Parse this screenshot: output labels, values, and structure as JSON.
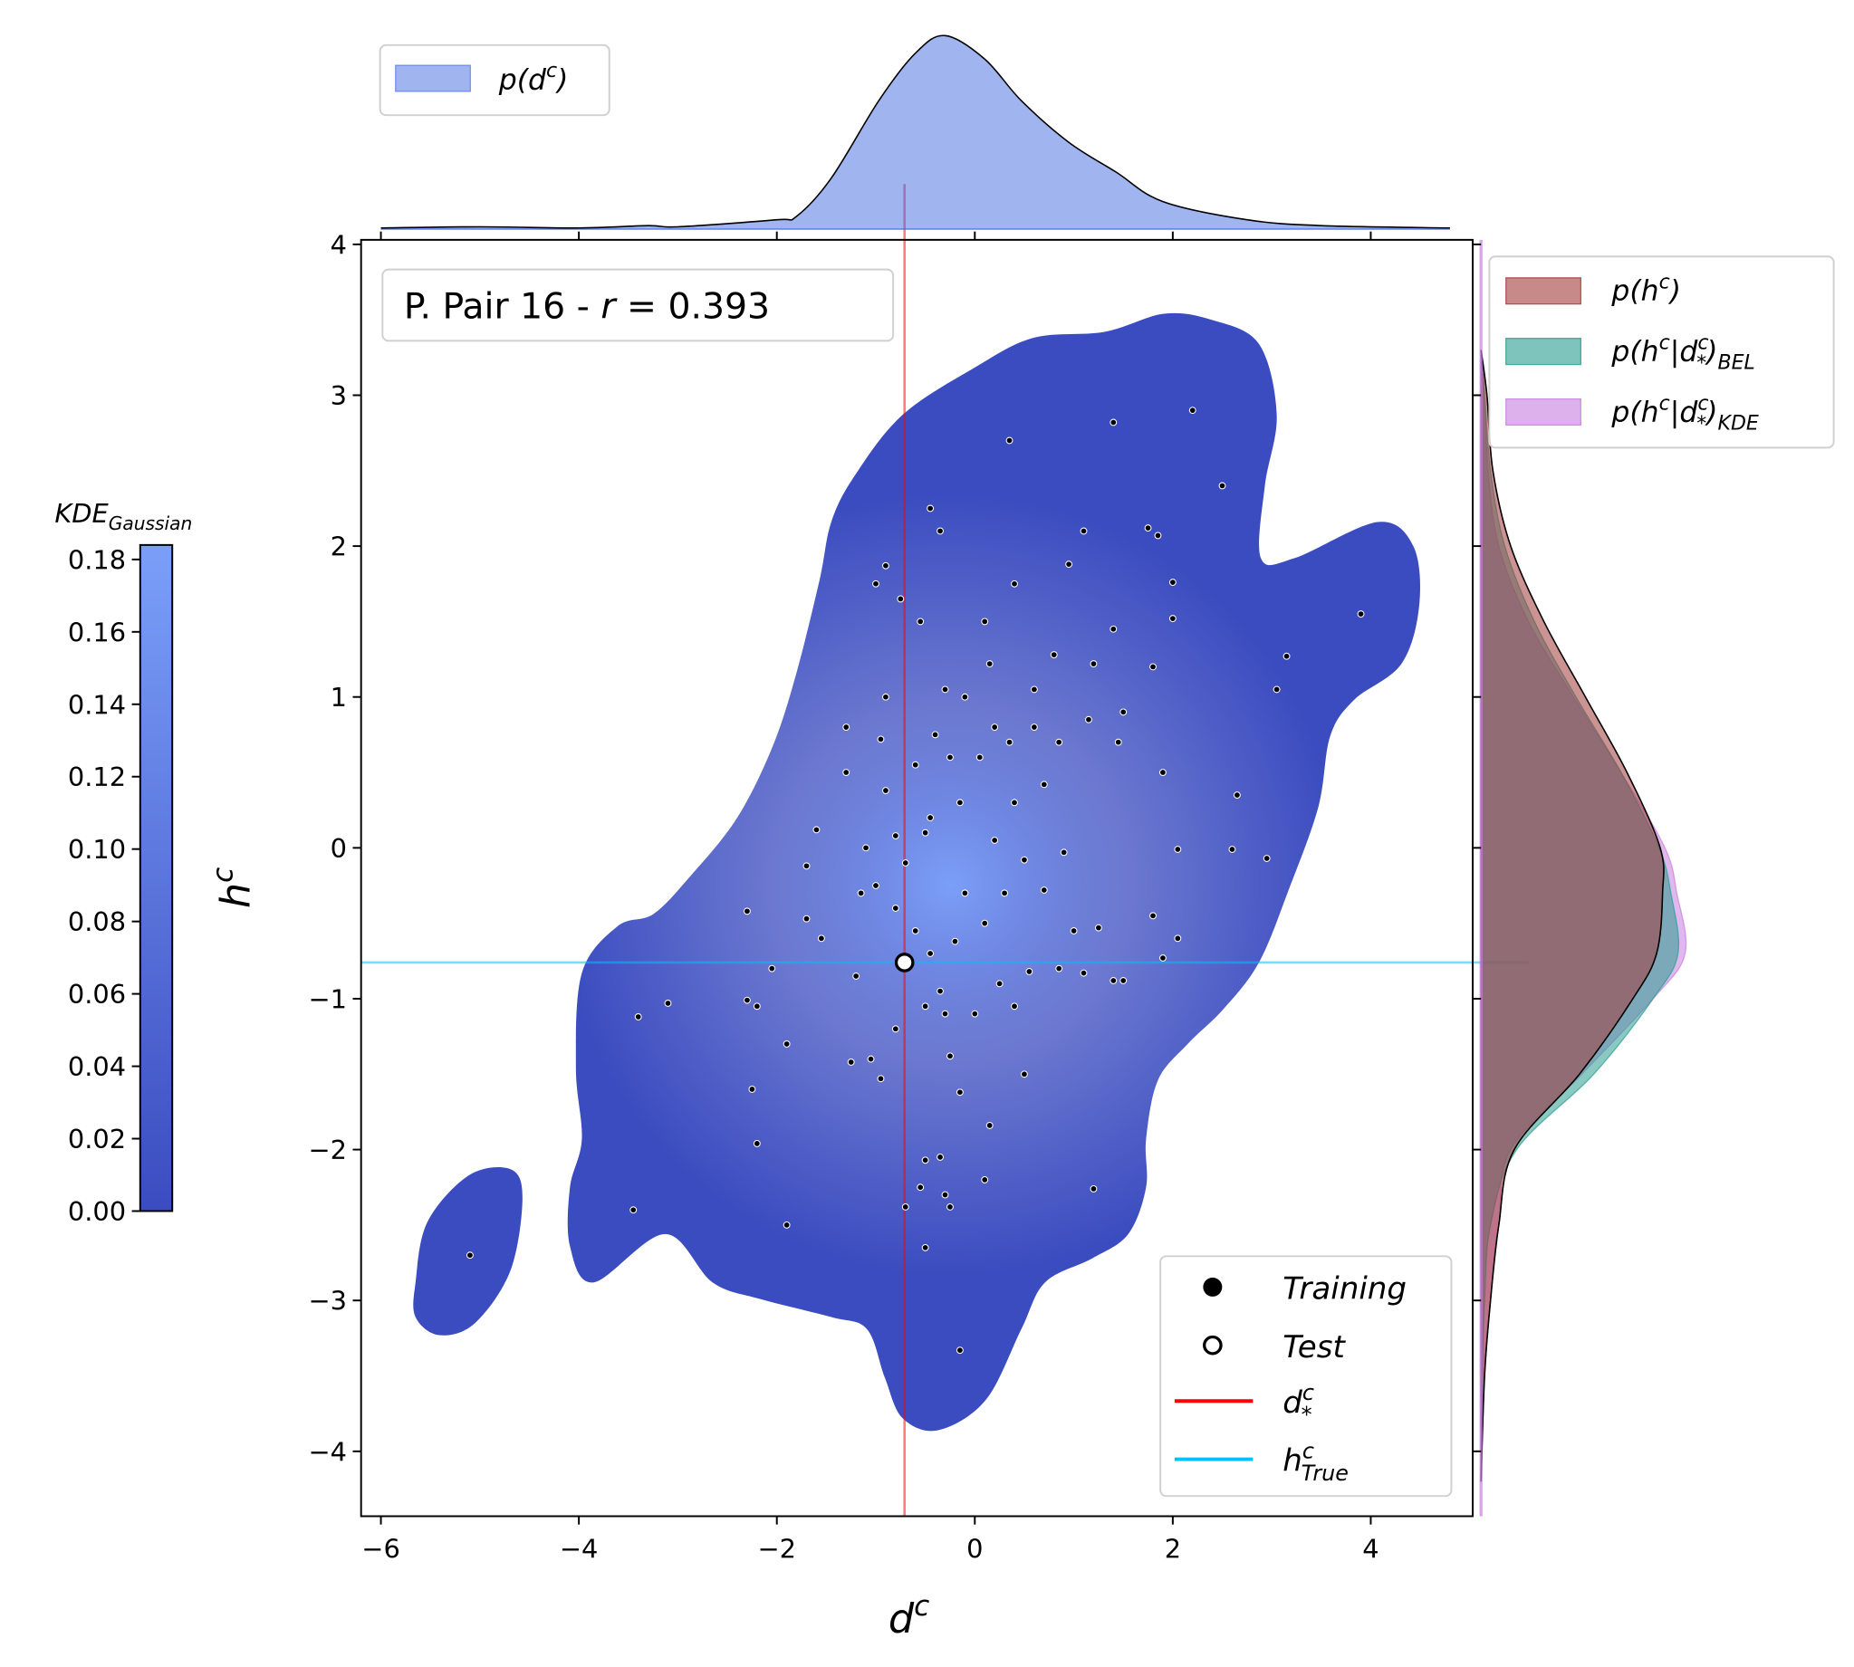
{
  "chart_data": {
    "type": "scatter",
    "title": [
      {
        "text": "P. Pair 16 - ",
        "pos": "base"
      },
      {
        "text": "r",
        "pos": "it"
      },
      {
        "text": " = 0.393",
        "pos": "base"
      }
    ],
    "x_label": [
      {
        "text": "d",
        "pos": "it"
      },
      {
        "text": "c",
        "pos": "sup"
      }
    ],
    "y_label": [
      {
        "text": "h",
        "pos": "it"
      },
      {
        "text": "c",
        "pos": "sup"
      }
    ],
    "xlim": [
      -6.2,
      5.03
    ],
    "ylim": [
      -4.43,
      4.03
    ],
    "xticks": [
      {
        "value": -6,
        "label": "−6"
      },
      {
        "value": -4,
        "label": "−4"
      },
      {
        "value": -2,
        "label": "−2"
      },
      0,
      2,
      4
    ],
    "yticks": [
      {
        "value": -4,
        "label": "−4"
      },
      {
        "value": -3,
        "label": "−3"
      },
      {
        "value": -2,
        "label": "−2"
      },
      {
        "value": -1,
        "label": "−1"
      },
      0,
      1,
      2,
      3,
      4
    ],
    "colorbar": {
      "title": [
        {
          "text": "KDE",
          "pos": "it"
        },
        {
          "text": "Gaussian",
          "pos": "sub"
        }
      ],
      "clim": [
        0,
        0.184
      ],
      "ticks": [
        {
          "value": 0,
          "label": "0.00"
        },
        {
          "value": 0.02,
          "label": "0.02"
        },
        {
          "value": 0.04,
          "label": "0.04"
        },
        {
          "value": 0.06,
          "label": "0.06"
        },
        {
          "value": 0.08,
          "label": "0.08"
        },
        {
          "value": 0.1,
          "label": "0.10"
        },
        {
          "value": 0.12,
          "label": "0.12"
        },
        {
          "value": 0.14,
          "label": "0.14"
        },
        {
          "value": 0.16,
          "label": "0.16"
        },
        {
          "value": 0.18,
          "label": "0.18"
        }
      ],
      "colors": [
        "#3b4cc0",
        "#7b9ff9"
      ]
    },
    "kde_regions": [
      {
        "x": [
          2.39,
          2.87,
          3.05,
          2.93,
          2.89,
          3.23,
          4.07,
          4.43,
          4.49,
          4.31,
          3.83,
          3.59,
          3.47,
          3.17,
          2.87,
          2.51,
          2.15,
          1.85,
          1.73,
          1.73,
          1.55,
          1.19,
          0.71,
          0.47,
          0.11,
          -0.37,
          -0.73,
          -0.91,
          -1.09,
          -1.45,
          -2.17,
          -2.65,
          -3.13,
          -3.85,
          -4.09,
          -4.09,
          -3.97,
          -4.03,
          -3.97,
          -3.61,
          -3.25,
          -2.89,
          -2.41,
          -2.05,
          -1.81,
          -1.57,
          -1.45,
          -1.21,
          -0.73,
          -0.01,
          0.59,
          1.31,
          1.91
        ],
        "y": [
          3.5,
          3.34,
          2.87,
          2.4,
          1.92,
          1.92,
          2.16,
          2.0,
          1.61,
          1.22,
          0.98,
          0.74,
          0.27,
          -0.28,
          -0.76,
          -1.07,
          -1.3,
          -1.54,
          -1.93,
          -2.25,
          -2.56,
          -2.72,
          -2.88,
          -3.19,
          -3.66,
          -3.86,
          -3.78,
          -3.51,
          -3.19,
          -3.11,
          -2.99,
          -2.88,
          -2.56,
          -2.88,
          -2.64,
          -2.25,
          -1.93,
          -1.46,
          -0.83,
          -0.52,
          -0.44,
          -0.2,
          0.19,
          0.66,
          1.14,
          1.77,
          2.16,
          2.47,
          2.87,
          3.18,
          3.38,
          3.42,
          3.54
        ]
      },
      {
        "x": [
          -5.65,
          -5.53,
          -5.11,
          -4.69,
          -4.57,
          -4.69,
          -5.05,
          -5.41,
          -5.65
        ],
        "y": [
          -2.88,
          -2.48,
          -2.17,
          -2.13,
          -2.32,
          -2.8,
          -3.15,
          -3.23,
          -3.11
        ]
      }
    ],
    "series": [
      {
        "name": [
          {
            "text": "Training",
            "pos": "it"
          }
        ],
        "color": "#000000",
        "x": [
          -5.1,
          -3.45,
          -3.4,
          -3.1,
          -2.3,
          -2.3,
          -2.2,
          -2.25,
          -2.2,
          -1.9,
          -1.9,
          -2.05,
          -1.7,
          -1.55,
          -1.6,
          -1.7,
          -1.25,
          -1.05,
          -0.95,
          -1.0,
          -0.9,
          -0.9,
          -0.75,
          -0.55,
          -0.45,
          -0.35,
          0.35,
          1.4,
          2.2,
          2.5,
          3.9,
          3.15,
          3.05,
          2.65,
          2.6,
          2.95,
          2.05,
          1.9,
          2.05,
          1.8,
          1.75,
          1.85,
          2.0,
          2.0,
          1.8,
          1.9,
          1.4,
          1.1,
          0.95,
          0.4,
          0.1,
          0.8,
          1.2,
          1.5,
          1.45,
          1.15,
          0.85,
          0.6,
          0.35,
          0.4,
          0.5,
          0.7,
          0.9,
          1.0,
          1.1,
          1.4,
          1.5,
          1.25,
          0.55,
          0.25,
          0.1,
          -0.1,
          -0.2,
          -0.35,
          -0.45,
          -0.6,
          -0.8,
          -1.0,
          -1.15,
          -1.1,
          -0.9,
          -0.6,
          -0.4,
          -0.3,
          -0.1,
          0.05,
          -0.15,
          -0.5,
          -0.7,
          -1.2,
          -0.8,
          -0.5,
          -0.3,
          -0.25,
          -0.15,
          0.0,
          0.4,
          0.5,
          0.15,
          0.1,
          -0.35,
          -0.5,
          -0.55,
          -0.3,
          -0.5,
          -0.7,
          -0.25,
          -0.15,
          1.2,
          -0.8,
          -0.45,
          0.2,
          0.3,
          0.7,
          0.85,
          -1.3,
          -1.3,
          -0.95,
          0.15,
          0.6,
          -0.25,
          0.2
        ],
        "y": [
          -2.7,
          -2.4,
          -1.12,
          -1.03,
          -0.42,
          -1.01,
          -1.05,
          -1.6,
          -1.96,
          -1.3,
          -2.5,
          -0.8,
          -0.47,
          -0.6,
          0.12,
          -0.12,
          -1.42,
          -1.4,
          -1.53,
          1.75,
          1.87,
          1.0,
          1.65,
          1.5,
          2.25,
          2.1,
          2.7,
          2.82,
          2.9,
          2.4,
          1.55,
          1.27,
          1.05,
          0.35,
          -0.01,
          -0.07,
          -0.01,
          -0.73,
          -0.6,
          -0.45,
          2.12,
          2.07,
          1.76,
          1.52,
          1.2,
          0.5,
          1.45,
          2.1,
          1.88,
          1.75,
          1.5,
          1.28,
          1.22,
          0.9,
          0.7,
          0.85,
          0.7,
          0.8,
          0.7,
          0.3,
          -0.08,
          -0.28,
          -0.03,
          -0.55,
          -0.83,
          -0.88,
          -0.88,
          -0.53,
          -0.82,
          -0.9,
          -0.5,
          -0.3,
          -0.62,
          -0.95,
          -0.7,
          -0.55,
          -0.4,
          -0.25,
          -0.3,
          0.0,
          0.38,
          0.55,
          0.75,
          1.05,
          1.0,
          0.6,
          0.3,
          0.1,
          -0.1,
          -0.85,
          -1.2,
          -1.05,
          -1.1,
          -1.38,
          -1.62,
          -1.1,
          -1.05,
          -1.5,
          -1.84,
          -2.2,
          -2.05,
          -2.07,
          -2.25,
          -2.3,
          -2.65,
          -2.38,
          -2.38,
          -3.33,
          -2.26,
          0.08,
          0.2,
          0.05,
          -0.3,
          0.42,
          -0.8,
          0.5,
          0.8,
          0.72,
          1.22,
          1.05,
          0.6,
          0.8
        ]
      },
      {
        "name": [
          {
            "text": "Test",
            "pos": "it"
          }
        ],
        "color": "#ffffff",
        "x": [
          -0.71
        ],
        "y": [
          -0.76
        ]
      }
    ],
    "d_star": {
      "value": -0.71,
      "color": "#ff0000",
      "name": [
        {
          "text": "d",
          "pos": "it"
        },
        {
          "text": "c",
          "pos": "sup"
        },
        {
          "text": "*",
          "pos": "under"
        }
      ]
    },
    "h_true": {
      "value": -0.76,
      "color": "#00bfff",
      "name": [
        {
          "text": "h",
          "pos": "it"
        },
        {
          "text": "c",
          "pos": "sup"
        },
        {
          "text": "True",
          "pos": "under"
        }
      ]
    },
    "marginal_x": {
      "name": [
        {
          "text": "p(d",
          "pos": "it"
        },
        {
          "text": "c",
          "pos": "sup"
        },
        {
          "text": ")",
          "pos": "it"
        }
      ],
      "color": "#4169e1",
      "x": [
        -6,
        -5,
        -4,
        -3.3,
        -3,
        -2,
        -1.8,
        -1.45,
        -0.97,
        -0.6,
        -0.3,
        0.1,
        0.47,
        0.95,
        1.43,
        1.9,
        2.75,
        3.5,
        4.8
      ],
      "density": [
        0.002,
        0.004,
        0.002,
        0.006,
        0.004,
        0.016,
        0.022,
        0.087,
        0.219,
        0.3,
        0.33,
        0.29,
        0.219,
        0.148,
        0.097,
        0.047,
        0.016,
        0.006,
        0.002
      ]
    },
    "marginal_y": {
      "h": [
        3.3,
        3,
        2.5,
        2,
        1.5,
        1,
        0.5,
        0,
        -0.3,
        -0.7,
        -1,
        -1.5,
        -2,
        -2.5,
        -3,
        -3.5,
        -4.2
      ],
      "series": [
        {
          "name": [
            {
              "text": "p(h",
              "pos": "it"
            },
            {
              "text": "c",
              "pos": "sup"
            },
            {
              "text": ")",
              "pos": "it"
            }
          ],
          "color": "#a33b3b",
          "values": [
            0,
            0.015,
            0.03,
            0.075,
            0.159,
            0.264,
            0.369,
            0.453,
            0.459,
            0.444,
            0.384,
            0.249,
            0.084,
            0.045,
            0.024,
            0.009,
            0
          ]
        },
        {
          "name": [
            {
              "text": "p(h",
              "pos": "it"
            },
            {
              "text": "c",
              "pos": "sup"
            },
            {
              "text": "|d",
              "pos": "it"
            },
            {
              "text": "c",
              "pos": "sup"
            },
            {
              "text": "*",
              "pos": "under"
            },
            {
              "text": ")",
              "pos": "it"
            },
            {
              "text": "BEL",
              "pos": "sub"
            }
          ],
          "color": "#2a9d8f",
          "values": [
            0,
            0.009,
            0.024,
            0.06,
            0.135,
            0.24,
            0.354,
            0.45,
            0.48,
            0.498,
            0.435,
            0.285,
            0.09,
            0.024,
            0.009,
            0.003,
            0
          ]
        },
        {
          "name": [
            {
              "text": "p(h",
              "pos": "it"
            },
            {
              "text": "c",
              "pos": "sup"
            },
            {
              "text": "|d",
              "pos": "it"
            },
            {
              "text": "c",
              "pos": "sup"
            },
            {
              "text": "*",
              "pos": "under"
            },
            {
              "text": ")",
              "pos": "it"
            },
            {
              "text": "KDE",
              "pos": "sub"
            }
          ],
          "color": "#c77ee0",
          "values": [
            0,
            0.009,
            0.018,
            0.045,
            0.12,
            0.234,
            0.354,
            0.465,
            0.495,
            0.516,
            0.435,
            0.255,
            0.075,
            0.045,
            0.024,
            0.006,
            0
          ]
        }
      ]
    }
  }
}
